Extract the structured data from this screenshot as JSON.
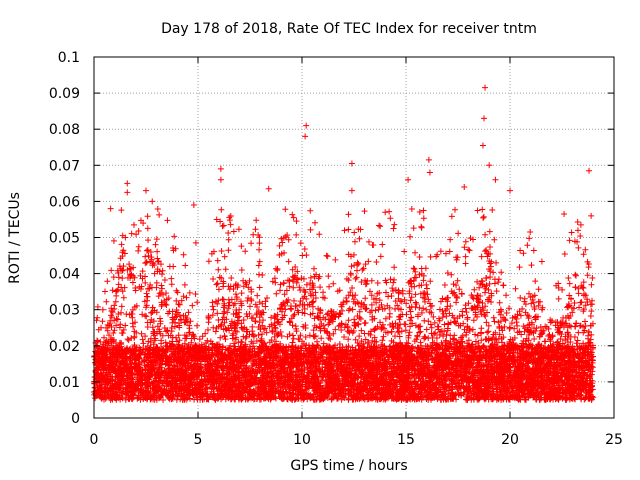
{
  "chart_data": {
    "type": "scatter",
    "title": "Day 178 of 2018, Rate Of TEC Index for receiver tntm",
    "xlabel": "GPS time / hours",
    "ylabel": "ROTI / TECUs",
    "xlim": [
      0,
      25
    ],
    "ylim": [
      0,
      0.1
    ],
    "xticks": [
      0,
      5,
      10,
      15,
      20,
      25
    ],
    "xtick_labels": [
      "0",
      "5",
      "10",
      "15",
      "20",
      "25"
    ],
    "yticks": [
      0,
      0.01,
      0.02,
      0.03,
      0.04,
      0.05,
      0.06,
      0.07,
      0.08,
      0.09,
      0.1
    ],
    "ytick_labels": [
      "0",
      "0.01",
      "0.02",
      "0.03",
      "0.04",
      "0.05",
      "0.06",
      "0.07",
      "0.08",
      "0.09",
      "0.1"
    ],
    "grid": true,
    "marker": "plus",
    "color": "#ff0000",
    "data_range_x": [
      0,
      24
    ],
    "baseline_band": [
      0.005,
      0.02
    ],
    "seed": 178,
    "point_count": 9000,
    "notable_points": [
      {
        "x": 18.8,
        "y": 0.0915
      },
      {
        "x": 18.75,
        "y": 0.083
      },
      {
        "x": 10.2,
        "y": 0.081
      },
      {
        "x": 10.15,
        "y": 0.078
      },
      {
        "x": 12.4,
        "y": 0.0705
      },
      {
        "x": 19.0,
        "y": 0.07
      },
      {
        "x": 16.1,
        "y": 0.0715
      },
      {
        "x": 16.15,
        "y": 0.068
      },
      {
        "x": 23.8,
        "y": 0.0685
      },
      {
        "x": 6.1,
        "y": 0.069
      },
      {
        "x": 6.1,
        "y": 0.066
      },
      {
        "x": 1.6,
        "y": 0.065
      },
      {
        "x": 1.6,
        "y": 0.0625
      },
      {
        "x": 15.1,
        "y": 0.066
      },
      {
        "x": 18.7,
        "y": 0.0755
      },
      {
        "x": 19.3,
        "y": 0.066
      },
      {
        "x": 20.0,
        "y": 0.063
      },
      {
        "x": 17.8,
        "y": 0.064
      },
      {
        "x": 8.4,
        "y": 0.0635
      },
      {
        "x": 2.5,
        "y": 0.063
      },
      {
        "x": 12.4,
        "y": 0.063
      },
      {
        "x": 4.8,
        "y": 0.059
      },
      {
        "x": 5.9,
        "y": 0.055
      },
      {
        "x": 0.8,
        "y": 0.058
      },
      {
        "x": 9.6,
        "y": 0.0555
      },
      {
        "x": 23.9,
        "y": 0.056
      },
      {
        "x": 22.6,
        "y": 0.0565
      },
      {
        "x": 4.9,
        "y": 0.0485
      },
      {
        "x": 14.0,
        "y": 0.057
      },
      {
        "x": 2.8,
        "y": 0.06
      }
    ]
  }
}
